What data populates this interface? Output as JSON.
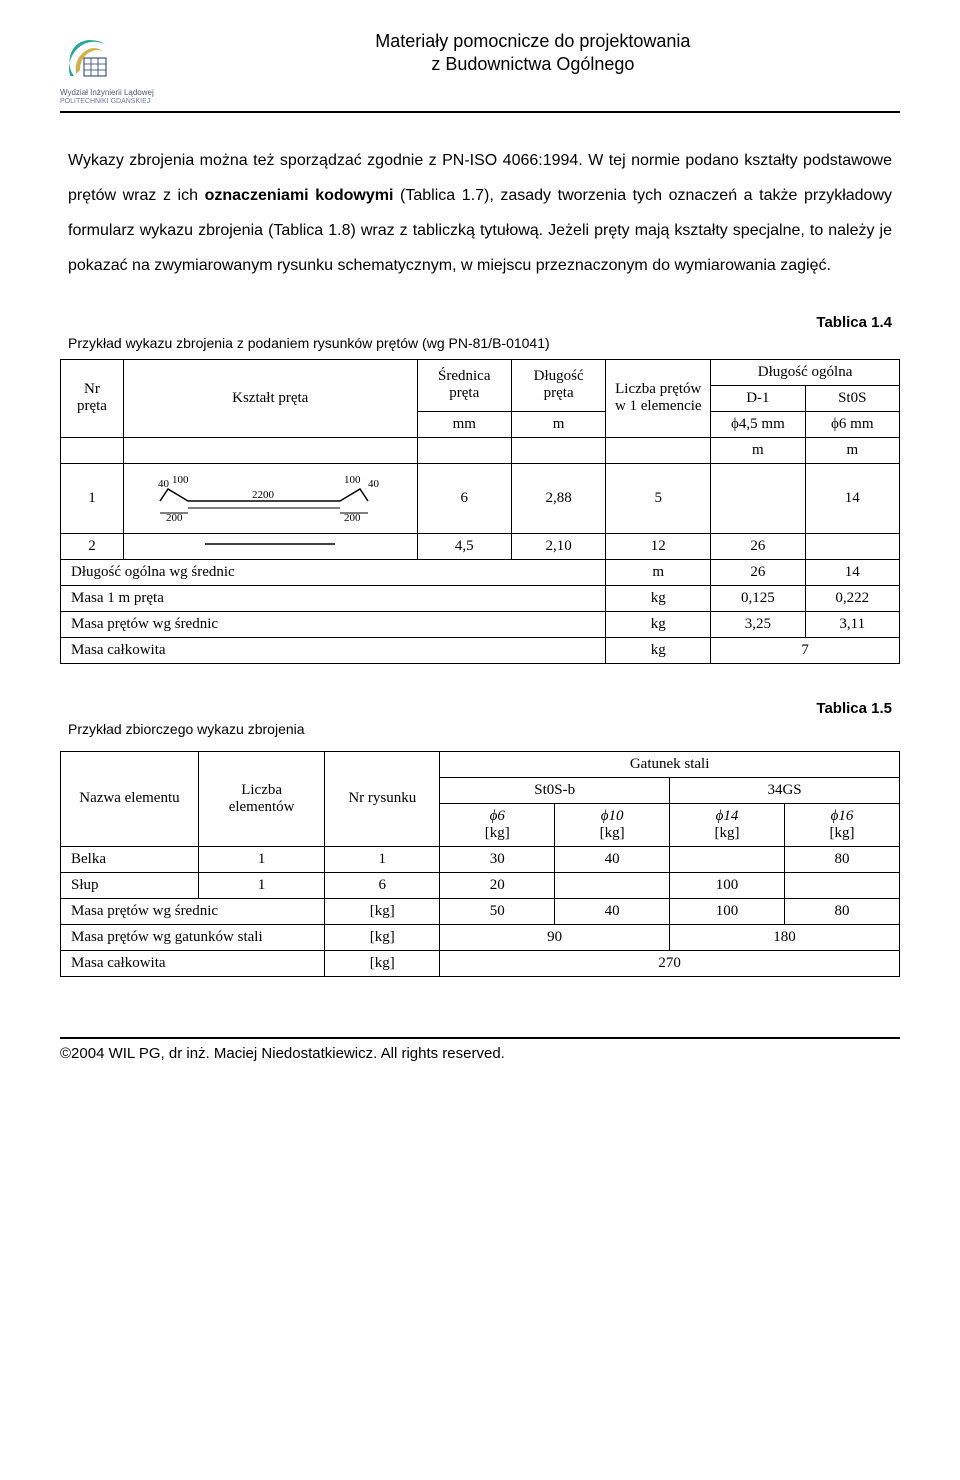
{
  "header": {
    "title": "Materiały pomocnicze do projektowania",
    "subtitle": "z Budownictwa Ogólnego",
    "logo_caption_1": "Wydział Inżynierii Lądowej",
    "logo_caption_2": "POLITECHNIKI GDAŃSKIEJ"
  },
  "body_paragraph": "Wykazy zbrojenia można też sporządzać zgodnie z PN-ISO 4066:1994. W tej normie podano kształty podstawowe prętów wraz z ich <b>oznaczeniami kodowymi</b> (Tablica 1.7), zasady tworzenia tych oznaczeń a także przykładowy formularz wykazu zbrojenia (Tablica 1.8) wraz z tabliczką tytułową. Jeżeli pręty mają kształty specjalne, to należy je pokazać na zwymiarowanym rysunku schematycznym, w miejscu przeznaczonym do wymiarowania zagięć.",
  "tablica14": {
    "label": "Tablica 1.4",
    "caption": "Przykład wykazu zbrojenia z podaniem rysunków prętów (wg PN-81/B-01041)",
    "col_nr": "Nr pręta",
    "col_ksztalt": "Kształt pręta",
    "col_srednica": "Średnica pręta",
    "col_dlugosc": "Długość pręta",
    "col_liczba": "Liczba prętów w 1 elemencie",
    "col_dlog": "Długość ogólna",
    "col_d1": "D-1",
    "col_st0s": "St0S",
    "col_phi45": "ϕ4,5 mm",
    "col_phi6": "ϕ6 mm",
    "unit_mm": "mm",
    "unit_m": "m",
    "row1": {
      "nr": "1",
      "srednica": "6",
      "dlugosc": "2,88",
      "liczba": "5",
      "d1": "",
      "st0s": "14"
    },
    "shape1": {
      "l40a": "40",
      "l100a": "100",
      "l2200": "2200",
      "l100b": "100",
      "l40b": "40",
      "l200a": "200",
      "l200b": "200"
    },
    "row2": {
      "nr": "2",
      "srednica": "4,5",
      "dlugosc": "2,10",
      "liczba": "12",
      "d1": "26",
      "st0s": ""
    },
    "sum1": {
      "label": "Długość ogólna wg średnic",
      "unit": "m",
      "v1": "26",
      "v2": "14"
    },
    "sum2": {
      "label": "Masa 1 m pręta",
      "unit": "kg",
      "v1": "0,125",
      "v2": "0,222"
    },
    "sum3": {
      "label": "Masa prętów wg średnic",
      "unit": "kg",
      "v1": "3,25",
      "v2": "3,11"
    },
    "sum4": {
      "label": "Masa całkowita",
      "unit": "kg",
      "v": "7"
    }
  },
  "tablica15": {
    "label": "Tablica 1.5",
    "caption": "Przykład zbiorczego wykazu zbrojenia",
    "col_nazwa": "Nazwa elementu",
    "col_liczba": "Liczba elementów",
    "col_nr": "Nr rysunku",
    "col_gatunek": "Gatunek stali",
    "col_st0sb": "St0S-b",
    "col_34gs": "34GS",
    "col_phi6": "ϕ6",
    "col_phi10": "ϕ10",
    "col_phi14": "ϕ14",
    "col_phi16": "ϕ16",
    "unit_kg": "[kg]",
    "row_belka": {
      "nazwa": "Belka",
      "liczba": "1",
      "nr": "1",
      "p6": "30",
      "p10": "40",
      "p14": "",
      "p16": "80"
    },
    "row_slup": {
      "nazwa": "Słup",
      "liczba": "1",
      "nr": "6",
      "p6": "20",
      "p10": "",
      "p14": "100",
      "p16": ""
    },
    "row_sred": {
      "label": "Masa prętów wg średnic",
      "unit": "[kg]",
      "p6": "50",
      "p10": "40",
      "p14": "100",
      "p16": "80"
    },
    "row_gat": {
      "label": "Masa prętów wg gatunków stali",
      "unit": "[kg]",
      "v1": "90",
      "v2": "180"
    },
    "row_total": {
      "label": "Masa całkowita",
      "unit": "[kg]",
      "v": "270"
    }
  },
  "footer": "©2004 WIL PG, dr inż. Maciej Niedostatkiewicz. All rights reserved."
}
